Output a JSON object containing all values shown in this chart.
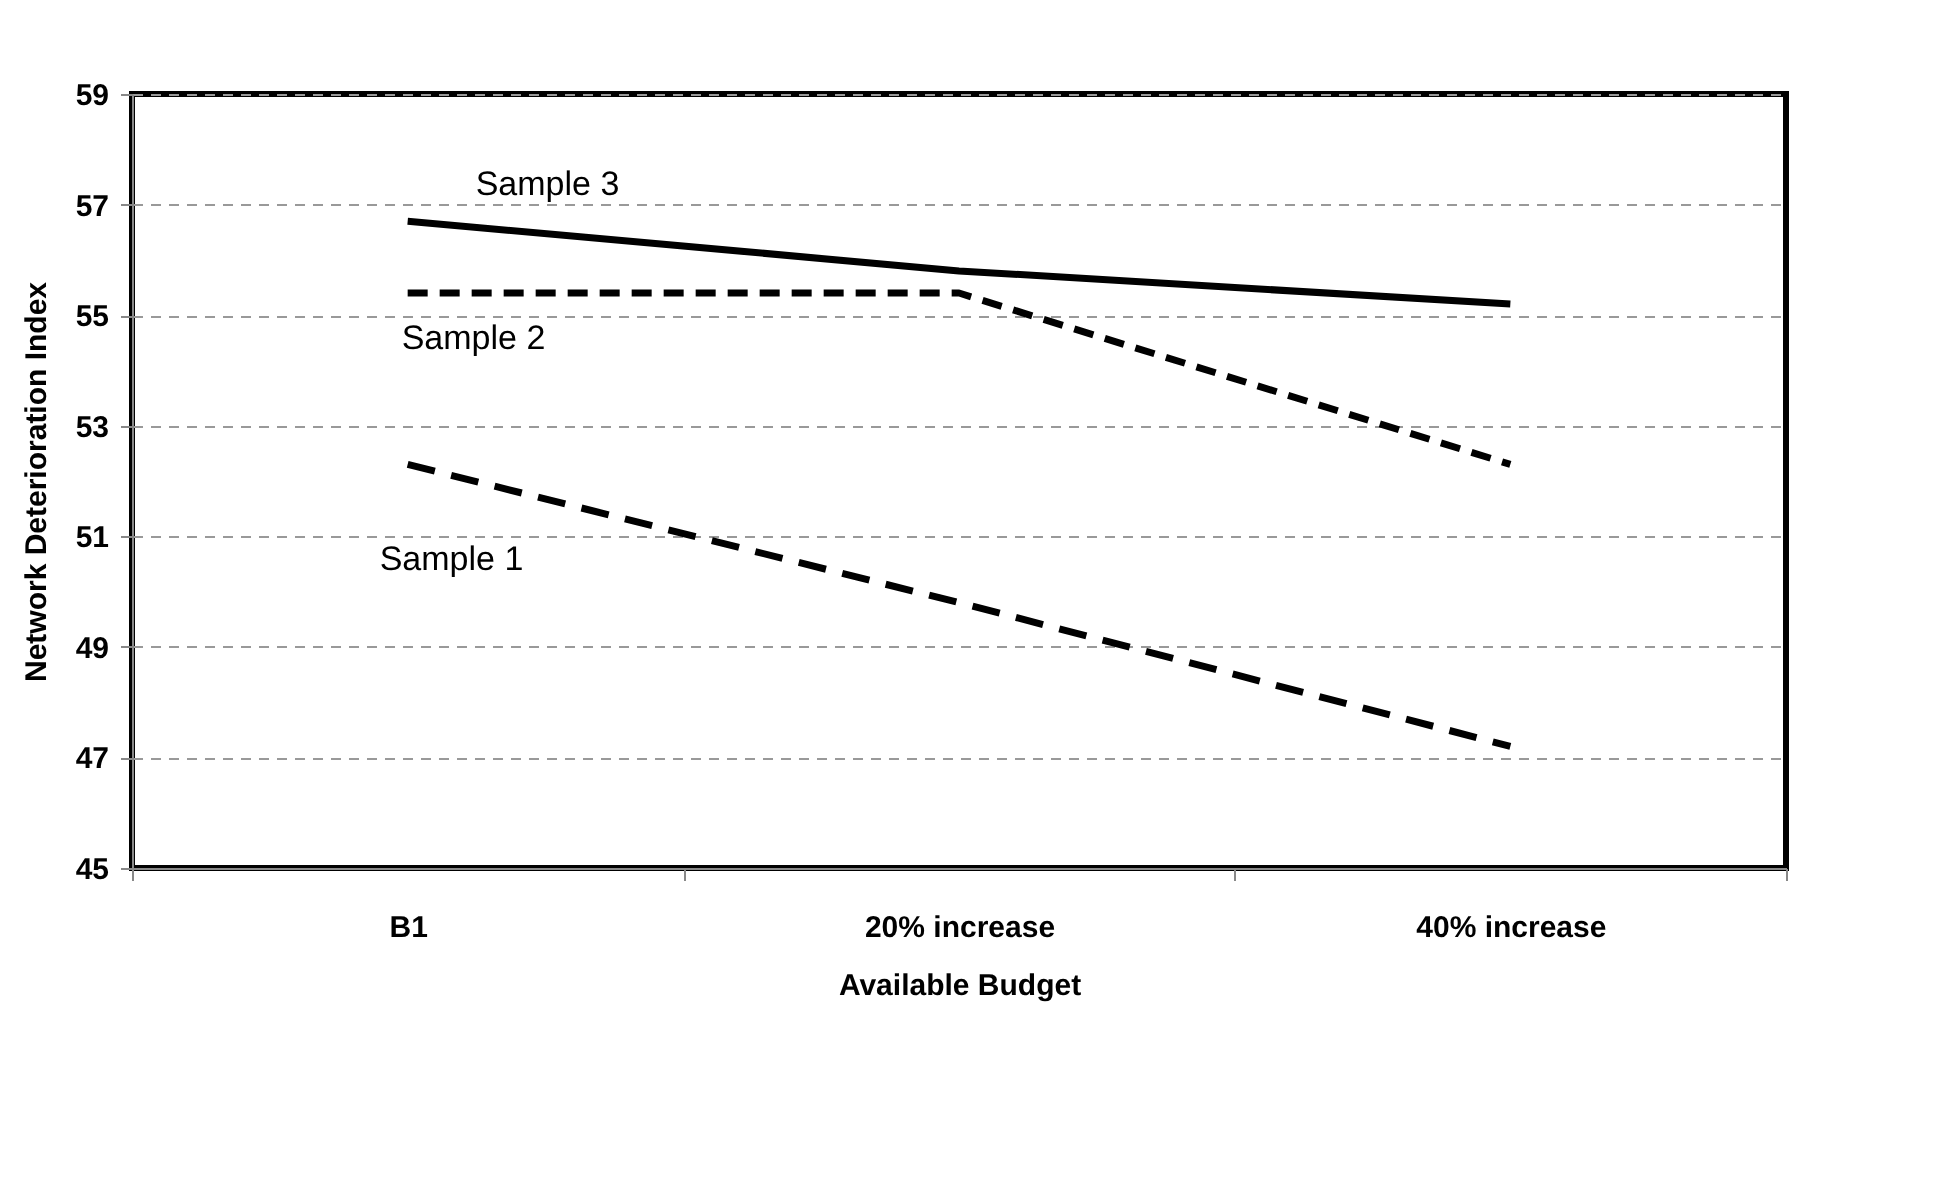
{
  "chart_data": {
    "type": "line",
    "xlabel": "Available Budget",
    "ylabel": "Network Deterioration Index",
    "categories": [
      "B1",
      "20% increase",
      "40% increase"
    ],
    "series": [
      {
        "name": "Sample 1",
        "color": "#000000",
        "line_style": "dashed",
        "values": [
          52.3,
          49.8,
          47.2
        ]
      },
      {
        "name": "Sample 2",
        "color": "#000000",
        "line_style": "dashed",
        "values": [
          55.4,
          55.4,
          52.3
        ]
      },
      {
        "name": "Sample 3",
        "color": "#000000",
        "line_style": "solid",
        "values": [
          56.7,
          55.8,
          55.2
        ]
      }
    ],
    "ylim": [
      45,
      59
    ],
    "yticks": [
      45,
      47,
      49,
      51,
      53,
      55,
      57,
      59
    ],
    "grid": "y",
    "marker": "none"
  }
}
